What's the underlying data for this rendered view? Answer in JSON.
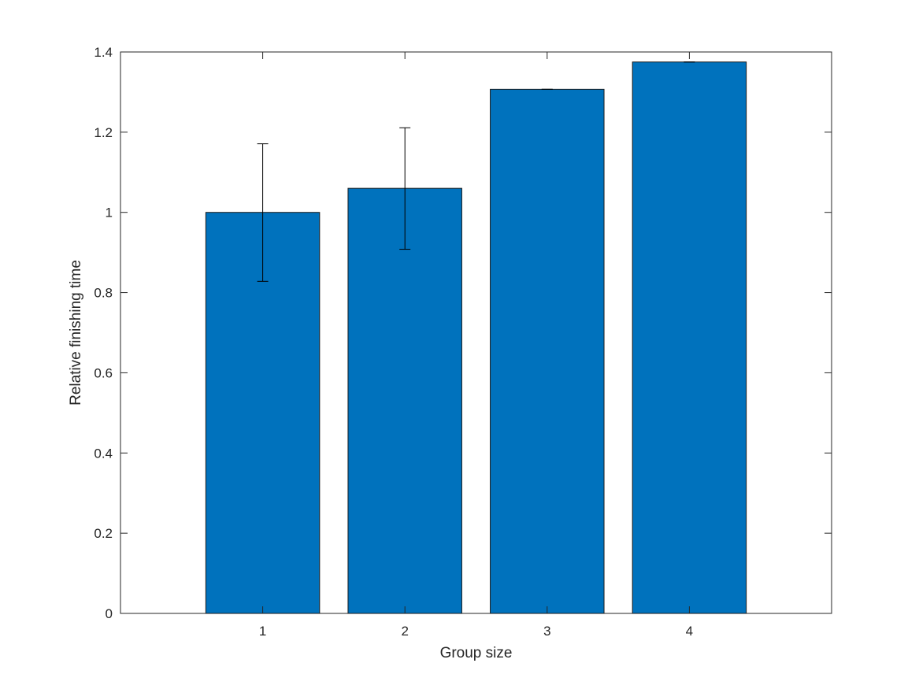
{
  "chart_data": {
    "type": "bar",
    "categories": [
      "1",
      "2",
      "3",
      "4"
    ],
    "values": [
      1.0,
      1.06,
      1.307,
      1.375
    ],
    "error_low": [
      0.828,
      0.908,
      1.307,
      1.375
    ],
    "error_high": [
      1.171,
      1.211,
      1.307,
      1.375
    ],
    "xlabel": "Group size",
    "ylabel": "Relative finishing time",
    "xlim": [
      0,
      5
    ],
    "ylim": [
      0,
      1.4
    ],
    "yticks": [
      "0",
      "0.2",
      "0.4",
      "0.6",
      "0.8",
      "1",
      "1.2",
      "1.4"
    ],
    "bar_color": "#0072bd",
    "grid": false,
    "legend": "none"
  }
}
